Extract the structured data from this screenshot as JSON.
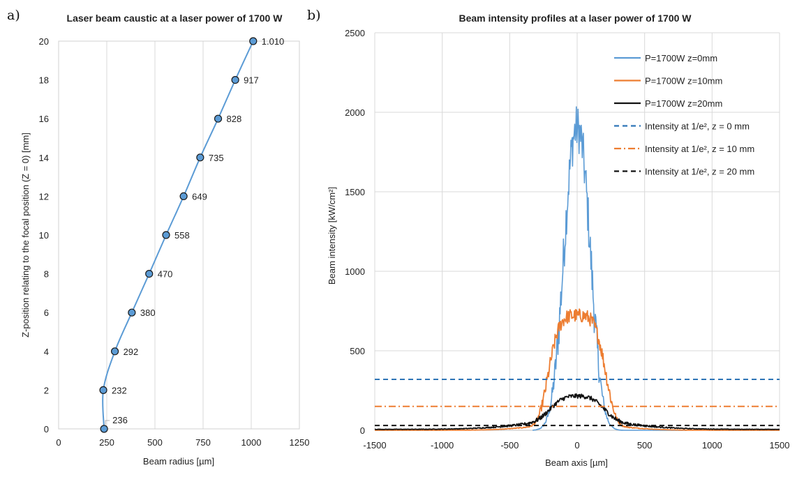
{
  "panels": {
    "a": "a)",
    "b": "b)"
  },
  "chart_data": [
    {
      "type": "line",
      "title": "Laser beam caustic at a laser power of 1700 W",
      "xlabel": "Beam radius [µm]",
      "ylabel": "Z-position relating to the focal position (Z = 0) [mm]",
      "xlim": [
        0,
        1250
      ],
      "ylim": [
        0,
        20
      ],
      "xticks": [
        "0",
        "250",
        "500",
        "750",
        "1000",
        "1250"
      ],
      "yticks": [
        "0",
        "2",
        "4",
        "6",
        "8",
        "10",
        "12",
        "14",
        "16",
        "18",
        "20"
      ],
      "grid": "vertical",
      "marker_color": "#5b9bd5",
      "points": [
        {
          "x": 236,
          "y": 0,
          "label": "236"
        },
        {
          "x": 232,
          "y": 2,
          "label": "232"
        },
        {
          "x": 292,
          "y": 4,
          "label": "292"
        },
        {
          "x": 380,
          "y": 6,
          "label": "380"
        },
        {
          "x": 470,
          "y": 8,
          "label": "470"
        },
        {
          "x": 558,
          "y": 10,
          "label": "558"
        },
        {
          "x": 649,
          "y": 12,
          "label": "649"
        },
        {
          "x": 735,
          "y": 14,
          "label": "735"
        },
        {
          "x": 828,
          "y": 16,
          "label": "828"
        },
        {
          "x": 917,
          "y": 18,
          "label": "917"
        },
        {
          "x": 1010,
          "y": 20,
          "label": "1.010"
        }
      ]
    },
    {
      "type": "line",
      "title": "Beam intensity profiles at a laser power of 1700 W",
      "xlabel": "Beam axis  [µm]",
      "ylabel": "Beam intensity [kW/cm²]",
      "xlim": [
        -1500,
        1500
      ],
      "ylim": [
        0,
        2500
      ],
      "xticks": [
        "-1500",
        "-1000",
        "-500",
        "0",
        "500",
        "1000",
        "1500"
      ],
      "yticks": [
        "0",
        "500",
        "1000",
        "1500",
        "2000",
        "2500"
      ],
      "grid": "both",
      "legend_position": "top-right",
      "series": [
        {
          "name": "P=1700W z=0mm",
          "color": "#5b9bd5",
          "style": "solid",
          "sigma": 105,
          "peak": 1900,
          "noise": 150,
          "x_range": [
            -330,
            810
          ]
        },
        {
          "name": "P=1700W z=10mm",
          "color": "#ed7d31",
          "style": "solid",
          "sigma": 150,
          "peak": 700,
          "noise": 45,
          "x_range": [
            -1500,
            1500
          ]
        },
        {
          "name": "P=1700W z=20mm",
          "color": "#111111",
          "style": "solid",
          "sigma": 360,
          "peak": 190,
          "noise": 14,
          "x_range": [
            -1500,
            1500
          ]
        },
        {
          "name": "Intensity at 1/e², z = 0 mm",
          "color": "#2e75b6",
          "style": "dashed",
          "level": 320
        },
        {
          "name": "Intensity at 1/e², z = 10 mm",
          "color": "#ed7d31",
          "style": "dashdot",
          "level": 150
        },
        {
          "name": "Intensity at 1/e², z = 20 mm",
          "color": "#111111",
          "style": "dashed",
          "level": 30
        }
      ]
    }
  ]
}
